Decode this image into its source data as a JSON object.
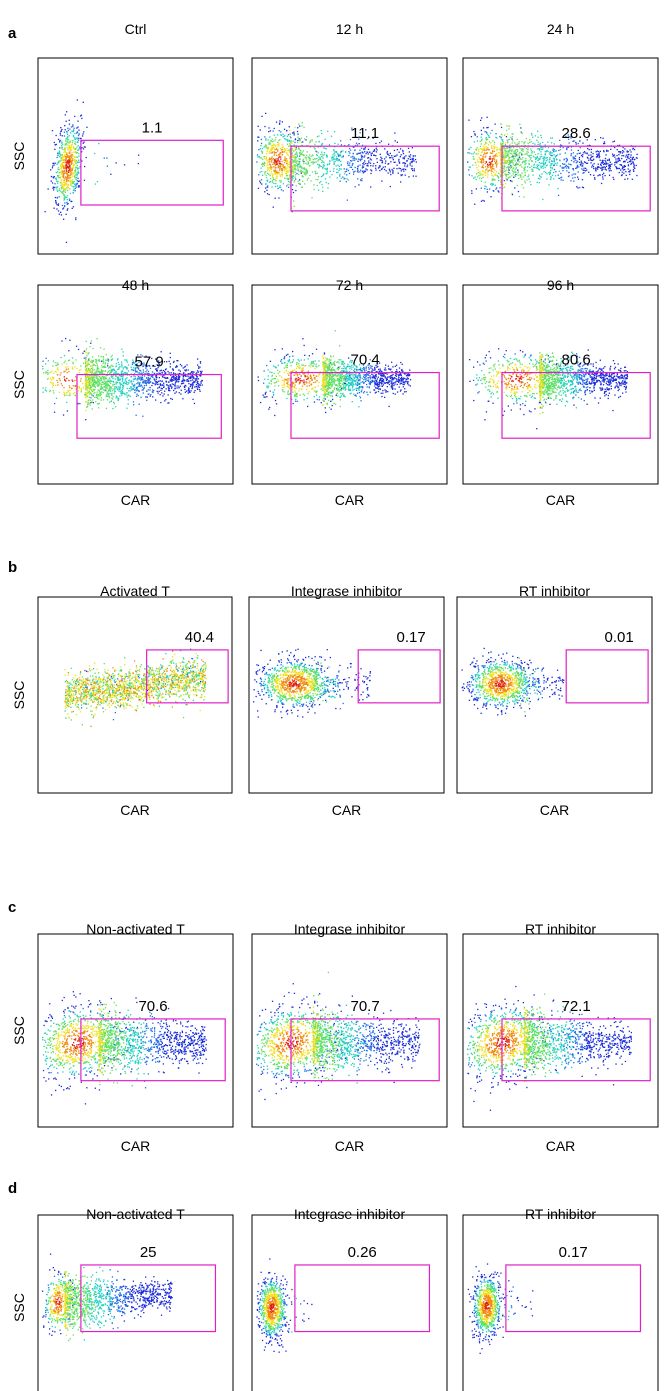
{
  "chart_data": [
    {
      "panel": "a",
      "type": "scatter",
      "xlabel": "CAR",
      "ylabel": "SSC",
      "plots": [
        {
          "title": "Ctrl",
          "gate_value": "1.1"
        },
        {
          "title": "12 h",
          "gate_value": "11.1"
        },
        {
          "title": "24 h",
          "gate_value": "28.6"
        },
        {
          "title": "48 h",
          "gate_value": "57.9"
        },
        {
          "title": "72 h",
          "gate_value": "70.4"
        },
        {
          "title": "96 h",
          "gate_value": "80.6"
        }
      ]
    },
    {
      "panel": "b",
      "type": "scatter",
      "xlabel": "CAR",
      "ylabel": "SSC",
      "plots": [
        {
          "title": "Activated T",
          "gate_value": "40.4"
        },
        {
          "title": "Integrase inhibitor",
          "gate_value": "0.17"
        },
        {
          "title": "RT inhibitor",
          "gate_value": "0.01"
        }
      ]
    },
    {
      "panel": "c",
      "type": "scatter",
      "xlabel": "CAR",
      "ylabel": "SSC",
      "plots": [
        {
          "title": "Non-activated T",
          "gate_value": "70.6"
        },
        {
          "title": "Integrase inhibitor",
          "gate_value": "70.7"
        },
        {
          "title": "RT inhibitor",
          "gate_value": "72.1"
        }
      ]
    },
    {
      "panel": "d",
      "type": "scatter",
      "xlabel": "",
      "ylabel": "SSC",
      "plots": [
        {
          "title": "Non-activated T",
          "gate_value": "25"
        },
        {
          "title": "Integrase inhibitor",
          "gate_value": "0.26"
        },
        {
          "title": "RT inhibitor",
          "gate_value": "0.17"
        }
      ]
    }
  ],
  "colors": {
    "gate": "#e020c8",
    "frame": "#000000",
    "density_low": "#1a2bd8",
    "density_mid": "#20d0c0",
    "density_high": "#f0e020",
    "density_peak": "#e02010"
  }
}
